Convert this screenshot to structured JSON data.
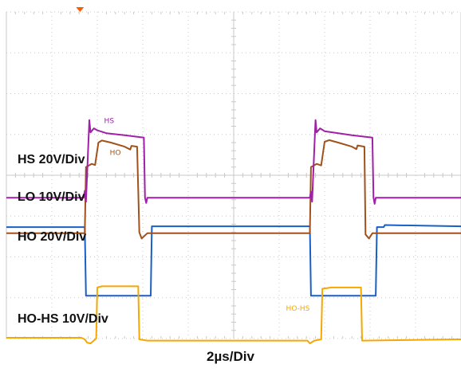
{
  "chart_data": {
    "type": "line",
    "xlabel": "2µs/Div",
    "grid": true,
    "channel_labels": [
      {
        "key": "HS",
        "text": "HS 20V/Div"
      },
      {
        "key": "LO",
        "text": "LO 10V/Div"
      },
      {
        "key": "HO",
        "text": "HO 20V/Div"
      },
      {
        "key": "HOHS",
        "text": "HO-HS 10V/Div"
      }
    ],
    "waveform_tags": [
      {
        "key": "HS",
        "text": "HS"
      },
      {
        "key": "HO",
        "text": "HO"
      },
      {
        "key": "HOHS",
        "text": "HO-HS"
      }
    ],
    "colors": {
      "HS": "#a020a8",
      "HO": "#a0521a",
      "LO": "#1a5fc8",
      "HOHS": "#f5a800",
      "grid": "#c9c9c9",
      "marker": "#ff5a00"
    },
    "x": {
      "min": 0,
      "max": 20,
      "unit": "µs"
    },
    "series": [
      {
        "key": "HS",
        "points": [
          [
            0,
            4.55
          ],
          [
            3.4,
            4.55
          ],
          [
            3.45,
            4.38
          ],
          [
            3.5,
            4.65
          ],
          [
            3.65,
            2.65
          ],
          [
            3.7,
            2.95
          ],
          [
            3.85,
            2.85
          ],
          [
            4.0,
            2.9
          ],
          [
            4.4,
            2.97
          ],
          [
            5.2,
            3.02
          ],
          [
            6.05,
            3.08
          ],
          [
            6.1,
            4.55
          ],
          [
            6.15,
            4.68
          ],
          [
            6.2,
            4.55
          ],
          [
            13.35,
            4.55
          ],
          [
            13.4,
            4.4
          ],
          [
            13.45,
            4.65
          ],
          [
            13.6,
            2.65
          ],
          [
            13.65,
            2.95
          ],
          [
            13.8,
            2.85
          ],
          [
            14.0,
            2.92
          ],
          [
            15.2,
            3.02
          ],
          [
            16.1,
            3.08
          ],
          [
            16.15,
            4.55
          ],
          [
            16.2,
            4.7
          ],
          [
            16.25,
            4.55
          ],
          [
            20,
            4.55
          ]
        ]
      },
      {
        "key": "HO",
        "points": [
          [
            0,
            5.42
          ],
          [
            3.45,
            5.42
          ],
          [
            3.5,
            3.8
          ],
          [
            3.75,
            3.72
          ],
          [
            3.9,
            3.75
          ],
          [
            4.05,
            3.2
          ],
          [
            4.2,
            3.15
          ],
          [
            4.6,
            3.2
          ],
          [
            5.2,
            3.3
          ],
          [
            5.45,
            3.37
          ],
          [
            5.5,
            3.28
          ],
          [
            5.75,
            3.3
          ],
          [
            5.85,
            5.4
          ],
          [
            5.95,
            5.55
          ],
          [
            6.2,
            5.42
          ],
          [
            13.35,
            5.42
          ],
          [
            13.4,
            3.8
          ],
          [
            13.65,
            3.72
          ],
          [
            13.85,
            3.76
          ],
          [
            14.0,
            3.18
          ],
          [
            14.2,
            3.14
          ],
          [
            14.6,
            3.2
          ],
          [
            15.2,
            3.3
          ],
          [
            15.4,
            3.36
          ],
          [
            15.45,
            3.27
          ],
          [
            15.75,
            3.3
          ],
          [
            15.8,
            5.45
          ],
          [
            15.95,
            5.55
          ],
          [
            16.1,
            5.42
          ],
          [
            20,
            5.42
          ]
        ]
      },
      {
        "key": "LO",
        "points": [
          [
            0,
            5.27
          ],
          [
            3.45,
            5.27
          ],
          [
            3.5,
            6.95
          ],
          [
            6.35,
            6.95
          ],
          [
            6.4,
            5.25
          ],
          [
            13.35,
            5.25
          ],
          [
            13.4,
            6.95
          ],
          [
            16.25,
            6.95
          ],
          [
            16.3,
            5.27
          ],
          [
            16.6,
            5.27
          ],
          [
            16.65,
            5.22
          ],
          [
            20,
            5.25
          ]
        ]
      },
      {
        "key": "HOHS",
        "points": [
          [
            0,
            7.98
          ],
          [
            3.3,
            7.98
          ],
          [
            3.45,
            8.02
          ],
          [
            3.55,
            8.1
          ],
          [
            3.7,
            8.12
          ],
          [
            3.95,
            8.0
          ],
          [
            4.0,
            6.75
          ],
          [
            4.2,
            6.72
          ],
          [
            5.8,
            6.72
          ],
          [
            5.85,
            8.02
          ],
          [
            6.2,
            8.05
          ],
          [
            13.25,
            8.05
          ],
          [
            13.35,
            8.12
          ],
          [
            13.55,
            8.05
          ],
          [
            13.85,
            8.02
          ],
          [
            13.9,
            6.78
          ],
          [
            14.3,
            6.75
          ],
          [
            15.6,
            6.75
          ],
          [
            15.65,
            8.05
          ],
          [
            20,
            8.02
          ]
        ]
      }
    ]
  }
}
